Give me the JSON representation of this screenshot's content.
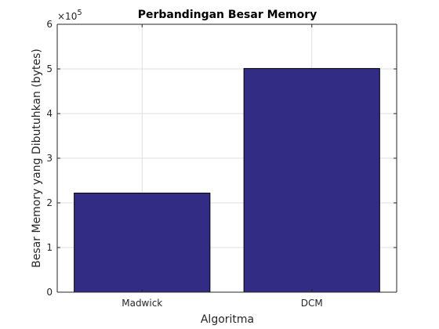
{
  "chart_data": {
    "type": "bar",
    "title": "Perbandingan Besar Memory",
    "xlabel": "Algoritma",
    "ylabel": "Besar Memory yang Dibutuhkan (bytes)",
    "categories": [
      "Madwick",
      "DCM"
    ],
    "values": [
      222000,
      501000
    ],
    "ylim": [
      0,
      600000
    ],
    "y_ticks": [
      0,
      1,
      2,
      3,
      4,
      5,
      6
    ],
    "y_tick_labels": [
      "0",
      "1",
      "2",
      "3",
      "4",
      "5",
      "6"
    ],
    "y_exponent_base": "×10",
    "y_exponent_power": "5",
    "grid": true,
    "bar_color": "#332C84",
    "bar_edge_color": "#000000"
  }
}
